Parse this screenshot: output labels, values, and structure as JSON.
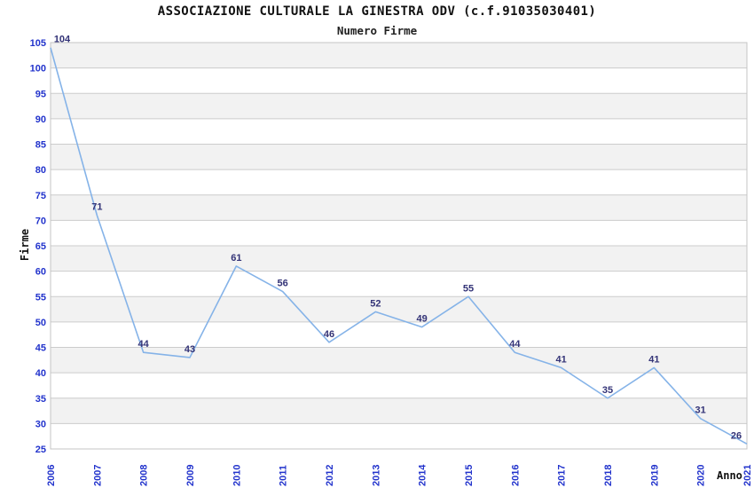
{
  "chart_data": {
    "type": "line",
    "title": "ASSOCIAZIONE CULTURALE LA GINESTRA ODV (c.f.91035030401)",
    "subtitle": "Numero Firme",
    "xlabel": "Anno",
    "ylabel": "Firme",
    "categories": [
      "2006",
      "2007",
      "2008",
      "2009",
      "2010",
      "2011",
      "2012",
      "2013",
      "2014",
      "2015",
      "2016",
      "2017",
      "2018",
      "2019",
      "2020",
      "2021"
    ],
    "values": [
      104,
      71,
      44,
      43,
      61,
      56,
      46,
      52,
      49,
      55,
      44,
      41,
      35,
      41,
      31,
      26
    ],
    "ylim": [
      25,
      105
    ],
    "ytick_step": 5,
    "grid": true,
    "legend": "none",
    "band_pattern": "alternating horizontal bands, gray starting at top interval 105-100",
    "colors": {
      "line": "#85b3e8",
      "tick_label": "#2233cc",
      "point_label": "#333377",
      "band": "#f2f2f2",
      "gridline": "#cccccc",
      "border": "#c4c4c4",
      "title_text": "#111111"
    }
  }
}
